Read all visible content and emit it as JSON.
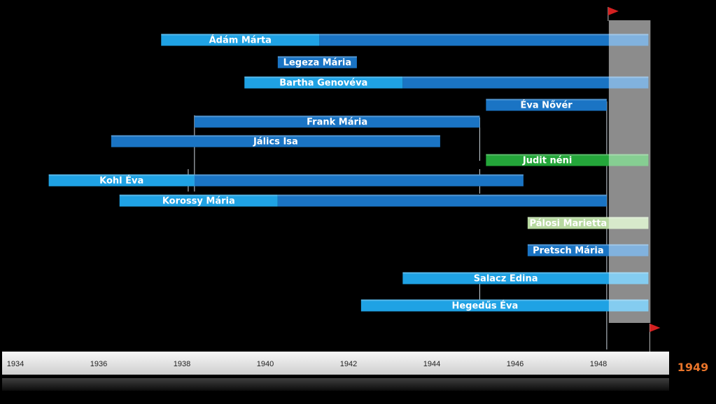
{
  "chart_data": {
    "type": "timeline",
    "title": "",
    "x_start": 1934,
    "x_end": 1949,
    "end_label": "1949",
    "ticks": [
      1934,
      1936,
      1938,
      1940,
      1942,
      1944,
      1946,
      1948
    ],
    "highlight_from": 1948.25,
    "highlight_to": 1949.25,
    "series": [
      {
        "label": "Ádám Márta",
        "segments": [
          {
            "start": 1937.5,
            "end": 1941.3,
            "style": "light"
          },
          {
            "start": 1941.3,
            "end": 1949.2,
            "style": "dark"
          }
        ]
      },
      {
        "label": "Legeza Mária",
        "segments": [
          {
            "start": 1940.3,
            "end": 1942.2,
            "style": "dark"
          }
        ]
      },
      {
        "label": "Bartha Genovéva",
        "segments": [
          {
            "start": 1939.5,
            "end": 1943.3,
            "style": "light"
          },
          {
            "start": 1943.3,
            "end": 1949.2,
            "style": "dark"
          }
        ]
      },
      {
        "label": "Éva Nővér",
        "segments": [
          {
            "start": 1945.3,
            "end": 1948.2,
            "style": "dark"
          }
        ]
      },
      {
        "label": "Frank Mária",
        "segments": [
          {
            "start": 1938.3,
            "end": 1945.15,
            "style": "dark"
          }
        ]
      },
      {
        "label": "Jálics Isa",
        "segments": [
          {
            "start": 1936.3,
            "end": 1944.2,
            "style": "dark"
          }
        ]
      },
      {
        "label": "Judit néni",
        "segments": [
          {
            "start": 1945.3,
            "end": 1949.2,
            "style": "green"
          }
        ]
      },
      {
        "label": "Kohl Éva",
        "segments": [
          {
            "start": 1934.8,
            "end": 1938.3,
            "style": "light"
          },
          {
            "start": 1938.3,
            "end": 1946.2,
            "style": "dark"
          }
        ]
      },
      {
        "label": "Korossy Mária",
        "segments": [
          {
            "start": 1936.5,
            "end": 1940.3,
            "style": "light"
          },
          {
            "start": 1940.3,
            "end": 1948.2,
            "style": "dark"
          }
        ]
      },
      {
        "label": "Pálosi Marietta",
        "segments": [
          {
            "start": 1946.3,
            "end": 1949.2,
            "style": "pale"
          }
        ]
      },
      {
        "label": "Pretsch Mária",
        "segments": [
          {
            "start": 1946.3,
            "end": 1949.2,
            "style": "dark"
          }
        ]
      },
      {
        "label": "Salacz Edina",
        "segments": [
          {
            "start": 1943.3,
            "end": 1949.2,
            "style": "light"
          }
        ]
      },
      {
        "label": "Hegedűs Éva",
        "segments": [
          {
            "start": 1942.3,
            "end": 1949.2,
            "style": "light"
          }
        ]
      }
    ],
    "colors": {
      "dark": "#1a74c4",
      "light": "#1fa2e4",
      "green": "#24a63a",
      "pale": "#b7d9a0",
      "highlight": "#8c8c8c",
      "flag": "#d42020",
      "end_label": "#e8742a"
    }
  }
}
